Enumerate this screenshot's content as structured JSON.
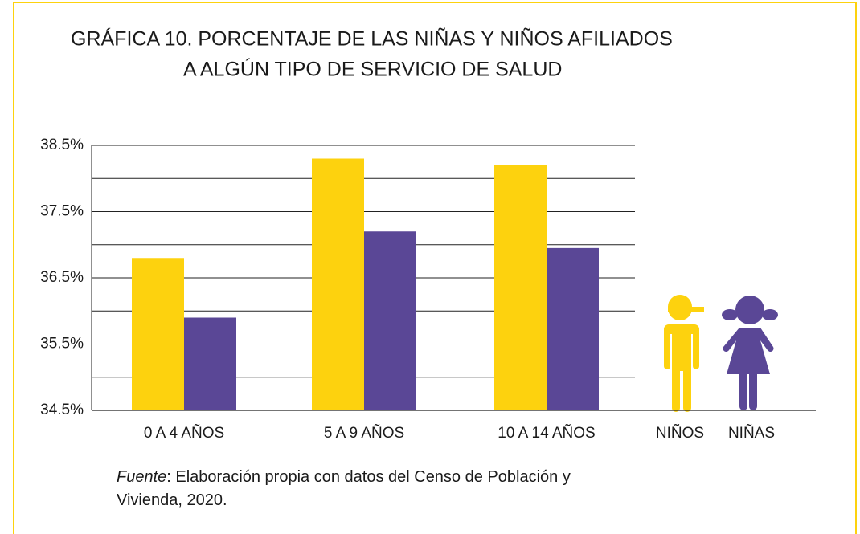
{
  "chart_data": {
    "type": "bar",
    "title_lines": [
      "GRÁFICA 10. PORCENTAJE DE LAS NIÑAS Y NIÑOS AFILIADOS",
      "A ALGÚN TIPO DE SERVICIO DE SALUD"
    ],
    "categories": [
      "0 A 4 AÑOS",
      "5 A 9 AÑOS",
      "10 A 14 AÑOS"
    ],
    "series": [
      {
        "name": "NIÑOS",
        "color": "#fdd20e",
        "values": [
          36.8,
          38.3,
          38.2
        ]
      },
      {
        "name": "NIÑAS",
        "color": "#5a4796",
        "values": [
          35.9,
          37.2,
          36.95
        ]
      }
    ],
    "ylim": [
      34.5,
      38.5
    ],
    "yticks": [
      {
        "value": 34.5,
        "label": "34.5%"
      },
      {
        "value": 35.5,
        "label": "35.5%"
      },
      {
        "value": 36.5,
        "label": "36.5%"
      },
      {
        "value": 37.5,
        "label": "37.5%"
      },
      {
        "value": 38.5,
        "label": "38.5%"
      }
    ],
    "minor_yticks": [
      35,
      36,
      37,
      38
    ],
    "grid": true,
    "source_label": "Fuente",
    "source_text": ": Elaboración propia con datos del Censo de Población y Vivienda, 2020."
  }
}
